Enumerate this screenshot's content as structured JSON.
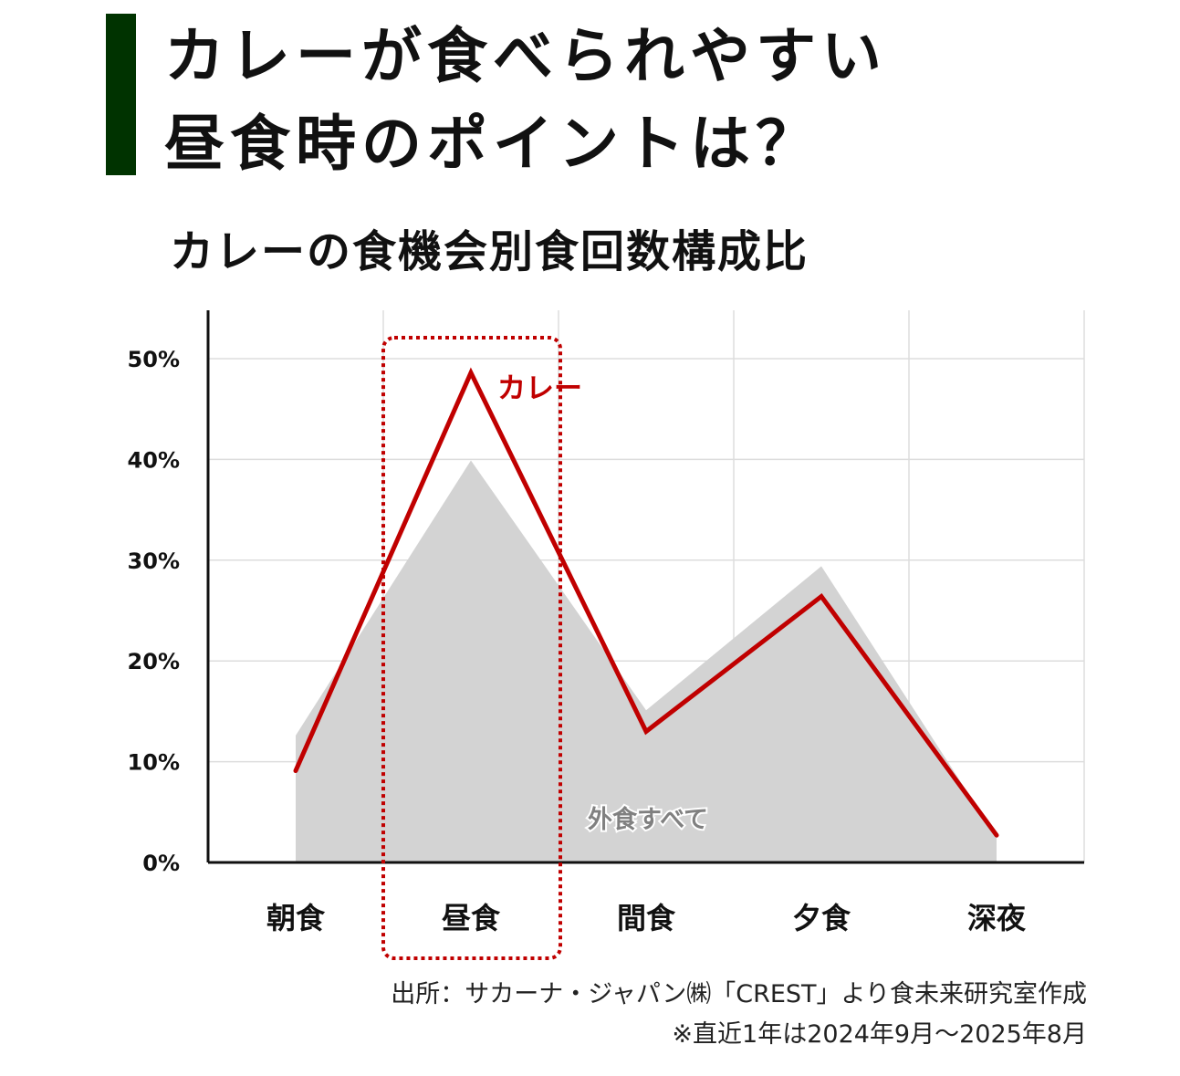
{
  "title_line1": "カレーが食べられやすい",
  "title_line2": "昼食時のポイントは？",
  "accent_color": "#003300",
  "chart_data": {
    "type": "line",
    "title": "カレーの食機会別食回数構成比",
    "categories": [
      "朝食",
      "昼食",
      "間食",
      "夕食",
      "深夜"
    ],
    "yticks": [
      "0%",
      "10%",
      "20%",
      "30%",
      "40%",
      "50%"
    ],
    "ylim": [
      0,
      55
    ],
    "grid": true,
    "series": [
      {
        "name": "外食すべて",
        "kind": "area",
        "color": "#d3d3d3",
        "label_color": "#808080",
        "values": [
          12.6,
          39.9,
          15.1,
          29.4,
          2.5
        ]
      },
      {
        "name": "カレー",
        "kind": "line",
        "color": "#c00000",
        "values": [
          9.1,
          48.6,
          13.0,
          26.4,
          2.7
        ]
      }
    ],
    "highlight": {
      "category": "昼食",
      "style": "dotted-box",
      "color": "#c00000"
    }
  },
  "source_line1": "出所：サカーナ・ジャパン㈱「CREST」より食未来研究室作成",
  "source_line2": "※直近1年は2024年9月～2025年8月"
}
